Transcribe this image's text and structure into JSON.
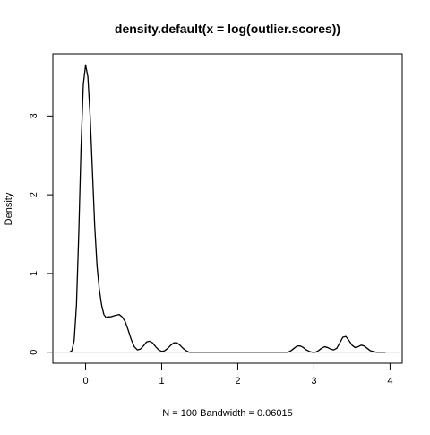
{
  "chart_data": {
    "type": "line",
    "title": "density.default(x = log(outlier.scores))",
    "xlabel": "N = 100   Bandwidth = 0.06015",
    "ylabel": "Density",
    "xlim": [
      -0.43,
      4.16
    ],
    "ylim": [
      -0.14,
      3.79
    ],
    "x_ticks": [
      "0",
      "1",
      "2",
      "3",
      "4"
    ],
    "x_tick_values": [
      0,
      1,
      2,
      3,
      4
    ],
    "y_ticks": [
      "0",
      "1",
      "2",
      "3"
    ],
    "y_tick_values": [
      0,
      1,
      2,
      3
    ],
    "baseline": 0,
    "grid": false,
    "series": [
      {
        "x": [
          -0.21,
          -0.18,
          -0.15,
          -0.12,
          -0.09,
          -0.06,
          -0.03,
          0.0,
          0.03,
          0.06,
          0.09,
          0.12,
          0.15,
          0.18,
          0.21,
          0.24,
          0.27,
          0.3,
          0.33,
          0.36,
          0.4,
          0.44,
          0.48,
          0.52,
          0.56,
          0.6,
          0.64,
          0.68,
          0.72,
          0.76,
          0.8,
          0.84,
          0.88,
          0.92,
          0.96,
          1.0,
          1.04,
          1.08,
          1.12,
          1.16,
          1.2,
          1.24,
          1.28,
          1.32,
          1.36,
          1.4,
          1.44,
          1.5,
          2.0,
          2.5,
          2.66,
          2.7,
          2.74,
          2.78,
          2.82,
          2.86,
          2.9,
          2.94,
          2.98,
          3.02,
          3.06,
          3.1,
          3.14,
          3.18,
          3.22,
          3.26,
          3.3,
          3.34,
          3.38,
          3.42,
          3.46,
          3.5,
          3.54,
          3.58,
          3.62,
          3.66,
          3.7,
          3.74,
          3.78,
          3.82,
          3.86,
          3.9,
          3.94
        ],
        "values": [
          0.0,
          0.02,
          0.15,
          0.6,
          1.5,
          2.6,
          3.4,
          3.65,
          3.5,
          3.0,
          2.3,
          1.6,
          1.1,
          0.8,
          0.6,
          0.48,
          0.44,
          0.45,
          0.45,
          0.46,
          0.47,
          0.48,
          0.45,
          0.39,
          0.28,
          0.16,
          0.07,
          0.03,
          0.04,
          0.08,
          0.13,
          0.14,
          0.12,
          0.07,
          0.03,
          0.01,
          0.02,
          0.05,
          0.09,
          0.12,
          0.12,
          0.09,
          0.05,
          0.02,
          0.0,
          0.0,
          0.0,
          0.0,
          0.0,
          0.0,
          0.0,
          0.02,
          0.05,
          0.08,
          0.08,
          0.06,
          0.03,
          0.01,
          0.0,
          0.0,
          0.02,
          0.05,
          0.07,
          0.06,
          0.04,
          0.03,
          0.05,
          0.12,
          0.19,
          0.2,
          0.15,
          0.09,
          0.06,
          0.07,
          0.09,
          0.08,
          0.05,
          0.02,
          0.01,
          0.0,
          0.0,
          0.0,
          0.0
        ]
      }
    ]
  }
}
